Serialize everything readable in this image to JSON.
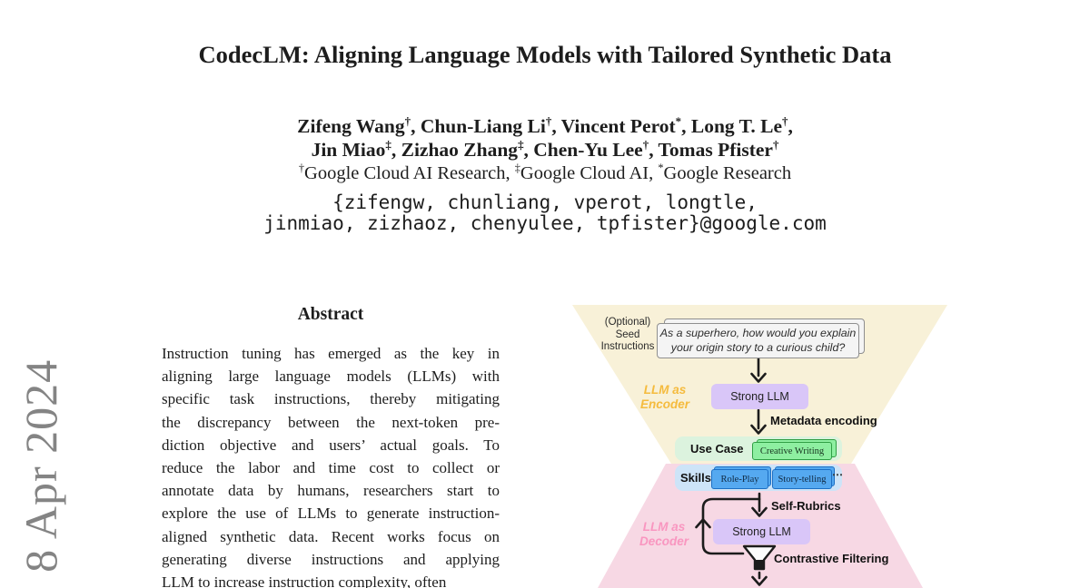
{
  "arxiv_stamp": {
    "text": "] 8 Apr 2024",
    "color": "#848484"
  },
  "header": {
    "title": "CodecLM: Aligning Language Models with Tailored Synthetic Data",
    "authors_line1": "Zifeng Wang†, Chun-Liang Li†, Vincent Perot*, Long T. Le†,",
    "authors_line2": "Jin Miao‡, Zizhao Zhang‡, Chen-Yu Lee†, Tomas Pfister†",
    "affiliations": "†Google Cloud AI Research, ‡Google Cloud AI, *Google Research",
    "emails_line1": "{zifengw, chunliang, vperot, longtle,",
    "emails_line2": "jinmiao, zizhaoz, chenyulee, tpfister}@google.com"
  },
  "abstract": {
    "heading": "Abstract",
    "lines": [
      "Instruction tuning has emerged as the key in",
      "aligning large language models (LLMs) with",
      "specific task instructions, thereby mitigating",
      "the discrepancy between the next-token pre-",
      "diction objective and users’ actual goals. To",
      "reduce the labor and time cost to collect or",
      "annotate data by humans, researchers start to",
      "explore the use of LLMs to generate instruction-",
      "aligned synthetic data. Recent works focus on",
      "generating diverse instructions and applying",
      "LLM to increase instruction complexity, often"
    ]
  },
  "figure": {
    "seed_label_line1": "(Optional)",
    "seed_label_line2": "Seed",
    "seed_label_line3": "Instructions",
    "seed_card_line1": "As a superhero, how would you explain",
    "seed_card_line2": "your origin story to a curious child?",
    "encoder_label_line1": "LLM as",
    "encoder_label_line2": "Encoder",
    "strong_llm_encoder": "Strong LLM",
    "metadata_encoding": "Metadata encoding",
    "use_case_label": "Use Case",
    "use_case_value": "Creative Writing",
    "skills_label": "Skills",
    "skill_1": "Role-Play",
    "skill_2": "Story-telling",
    "skills_ellipsis": "⋯",
    "self_rubrics": "Self-Rubrics",
    "decoder_label_line1": "LLM as",
    "decoder_label_line2": "Decoder",
    "strong_llm_decoder": "Strong LLM",
    "contrastive_filtering": "Contrastive Filtering",
    "colors": {
      "encoder_region": "#f8f1d8",
      "decoder_region": "#f7d8e4",
      "strong_llm_box": "#d9c6f8",
      "encoder_label": "#f5bb3d",
      "decoder_label": "#f996c0",
      "use_case_pill": "#dcf3de",
      "use_case_box": "#8eefa1",
      "use_case_border": "#2f9e44",
      "skills_pill": "#cde4f8",
      "skill_box": "#55a9f0",
      "skill_border": "#1c6fc4"
    }
  }
}
